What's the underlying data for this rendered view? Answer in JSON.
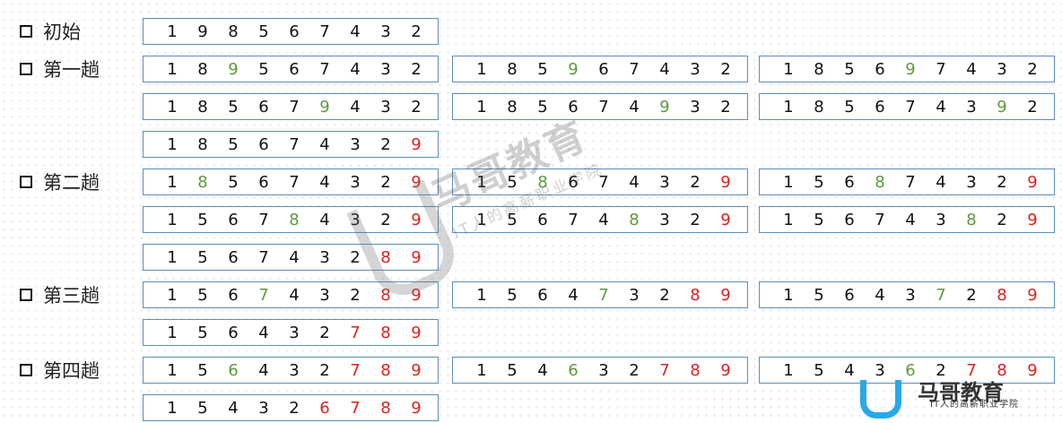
{
  "passes": [
    {
      "label": "初始",
      "rows": [
        [
          {
            "digits": [
              1,
              9,
              8,
              5,
              6,
              7,
              4,
              3,
              2
            ],
            "moving": -1,
            "sortedFrom": 9
          }
        ]
      ]
    },
    {
      "label": "第一趟",
      "rows": [
        [
          {
            "digits": [
              1,
              8,
              9,
              5,
              6,
              7,
              4,
              3,
              2
            ],
            "moving": 2,
            "sortedFrom": 9
          },
          {
            "digits": [
              1,
              8,
              5,
              9,
              6,
              7,
              4,
              3,
              2
            ],
            "moving": 3,
            "sortedFrom": 9
          },
          {
            "digits": [
              1,
              8,
              5,
              6,
              9,
              7,
              4,
              3,
              2
            ],
            "moving": 4,
            "sortedFrom": 9
          }
        ],
        [
          {
            "digits": [
              1,
              8,
              5,
              6,
              7,
              9,
              4,
              3,
              2
            ],
            "moving": 5,
            "sortedFrom": 9
          },
          {
            "digits": [
              1,
              8,
              5,
              6,
              7,
              4,
              9,
              3,
              2
            ],
            "moving": 6,
            "sortedFrom": 9
          },
          {
            "digits": [
              1,
              8,
              5,
              6,
              7,
              4,
              3,
              9,
              2
            ],
            "moving": 7,
            "sortedFrom": 9
          }
        ],
        [
          {
            "digits": [
              1,
              8,
              5,
              6,
              7,
              4,
              3,
              2,
              9
            ],
            "moving": -1,
            "sortedFrom": 8
          }
        ]
      ]
    },
    {
      "label": "第二趟",
      "rows": [
        [
          {
            "digits": [
              1,
              8,
              5,
              6,
              7,
              4,
              3,
              2,
              9
            ],
            "moving": 1,
            "sortedFrom": 8
          },
          {
            "digits": [
              1,
              5,
              8,
              6,
              7,
              4,
              3,
              2,
              9
            ],
            "moving": 2,
            "sortedFrom": 8
          },
          {
            "digits": [
              1,
              5,
              6,
              8,
              7,
              4,
              3,
              2,
              9
            ],
            "moving": 3,
            "sortedFrom": 8
          }
        ],
        [
          {
            "digits": [
              1,
              5,
              6,
              7,
              8,
              4,
              3,
              2,
              9
            ],
            "moving": 4,
            "sortedFrom": 8
          },
          {
            "digits": [
              1,
              5,
              6,
              7,
              4,
              8,
              3,
              2,
              9
            ],
            "moving": 5,
            "sortedFrom": 8
          },
          {
            "digits": [
              1,
              5,
              6,
              7,
              4,
              3,
              8,
              2,
              9
            ],
            "moving": 6,
            "sortedFrom": 8
          }
        ],
        [
          {
            "digits": [
              1,
              5,
              6,
              7,
              4,
              3,
              2,
              8,
              9
            ],
            "moving": -1,
            "sortedFrom": 7
          }
        ]
      ]
    },
    {
      "label": "第三趟",
      "rows": [
        [
          {
            "digits": [
              1,
              5,
              6,
              7,
              4,
              3,
              2,
              8,
              9
            ],
            "moving": 3,
            "sortedFrom": 7
          },
          {
            "digits": [
              1,
              5,
              6,
              4,
              7,
              3,
              2,
              8,
              9
            ],
            "moving": 4,
            "sortedFrom": 7
          },
          {
            "digits": [
              1,
              5,
              6,
              4,
              3,
              7,
              2,
              8,
              9
            ],
            "moving": 5,
            "sortedFrom": 7
          }
        ],
        [
          {
            "digits": [
              1,
              5,
              6,
              4,
              3,
              2,
              7,
              8,
              9
            ],
            "moving": -1,
            "sortedFrom": 6
          }
        ]
      ]
    },
    {
      "label": "第四趟",
      "rows": [
        [
          {
            "digits": [
              1,
              5,
              6,
              4,
              3,
              2,
              7,
              8,
              9
            ],
            "moving": 2,
            "sortedFrom": 6
          },
          {
            "digits": [
              1,
              5,
              4,
              6,
              3,
              2,
              7,
              8,
              9
            ],
            "moving": 3,
            "sortedFrom": 6
          },
          {
            "digits": [
              1,
              5,
              4,
              3,
              6,
              2,
              7,
              8,
              9
            ],
            "moving": 4,
            "sortedFrom": 6
          }
        ],
        [
          {
            "digits": [
              1,
              5,
              4,
              3,
              2,
              6,
              7,
              8,
              9
            ],
            "moving": -1,
            "sortedFrom": 5
          }
        ]
      ]
    }
  ],
  "colors": {
    "moving": "#5c9a3c",
    "sorted": "#e02020",
    "border": "#5b8dbf"
  },
  "watermark": {
    "name": "马哥教育",
    "slogan": "IT人的高薪职业学院"
  }
}
